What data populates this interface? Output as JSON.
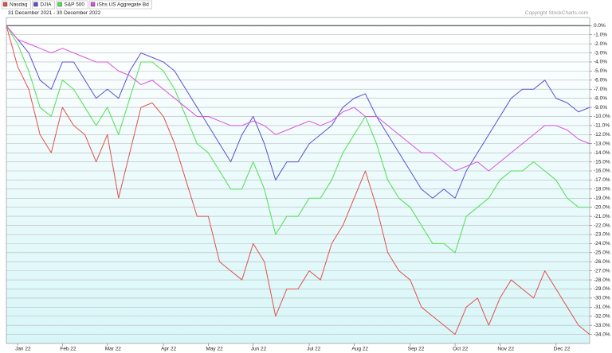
{
  "chart_data": {
    "type": "line",
    "subtitle": "31 December 2021 - 30 December 2022",
    "copyright": "Copyright StockCharts.com",
    "categories": [
      null,
      "Jan 22",
      null,
      null,
      null,
      "Feb 22",
      null,
      null,
      null,
      "Mar 22",
      null,
      null,
      null,
      null,
      "Apr 22",
      null,
      null,
      null,
      "May 22",
      null,
      null,
      null,
      "Jun 22",
      null,
      null,
      null,
      null,
      "Jul 22",
      null,
      null,
      null,
      "Aug 22",
      null,
      null,
      null,
      null,
      "Sep 22",
      null,
      null,
      null,
      "Oct 22",
      null,
      null,
      null,
      "Nov 22",
      null,
      null,
      null,
      null,
      "Dec 22",
      null,
      null,
      null
    ],
    "series": [
      {
        "name": "Nasdaq",
        "color": "#e0504c",
        "values": [
          0,
          -4.5,
          -7,
          -12,
          -14,
          -9,
          -11,
          -12,
          -15,
          -12,
          -19,
          -14,
          -9,
          -8.5,
          -10,
          -13,
          -17,
          -21,
          -21,
          -26,
          -27,
          -28,
          -24,
          -26,
          -32,
          -29,
          -29,
          -27,
          -28,
          -24,
          -22,
          -19,
          -16,
          -20,
          -25,
          -27,
          -28,
          -31,
          -32,
          -33,
          -34,
          -31,
          -30,
          -33,
          -30,
          -28,
          -29,
          -30,
          -27,
          -29,
          -31,
          -33,
          -34
        ]
      },
      {
        "name": "DJIA",
        "color": "#5a4fcf",
        "values": [
          0,
          -1.5,
          -3,
          -6,
          -7,
          -4,
          -4,
          -6,
          -8,
          -7,
          -8,
          -5,
          -3,
          -3.5,
          -4,
          -5,
          -7,
          -9,
          -11,
          -13,
          -15,
          -12,
          -10,
          -13,
          -17,
          -15,
          -15,
          -13,
          -12,
          -11,
          -9,
          -8,
          -7.5,
          -10,
          -12,
          -14,
          -16,
          -18,
          -19,
          -18,
          -19,
          -16,
          -14,
          -12,
          -10,
          -8,
          -7,
          -7,
          -6,
          -8,
          -8.5,
          -9.5,
          -9
        ]
      },
      {
        "name": "S&P 500",
        "color": "#4ee04e",
        "values": [
          0,
          -2,
          -5,
          -9,
          -10,
          -6,
          -7,
          -9,
          -11,
          -9,
          -12,
          -8,
          -4,
          -4,
          -5,
          -7,
          -10,
          -13,
          -14,
          -16,
          -18,
          -18,
          -15,
          -18,
          -23,
          -21,
          -21,
          -19,
          -19,
          -17,
          -14,
          -12,
          -10,
          -13,
          -17,
          -19,
          -20,
          -22,
          -24,
          -24,
          -25,
          -21,
          -20,
          -19,
          -17,
          -16,
          -16,
          -15,
          -16,
          -17,
          -19,
          -20,
          -20
        ]
      },
      {
        "name": "iShs US Aggregate Bd",
        "color": "#d850df",
        "values": [
          0,
          -1.5,
          -2,
          -2.5,
          -3,
          -2.5,
          -3,
          -3.5,
          -4,
          -4,
          -5,
          -5.5,
          -6.5,
          -6,
          -7,
          -8,
          -9,
          -10,
          -10,
          -10.5,
          -11,
          -11,
          -10.5,
          -11,
          -12,
          -11.5,
          -11,
          -10.5,
          -11,
          -10.5,
          -9.5,
          -9,
          -10,
          -10,
          -11,
          -12,
          -13,
          -14,
          -14,
          -15,
          -16,
          -15.5,
          -15,
          -16,
          -15,
          -14,
          -13,
          -12,
          -11,
          -11,
          -11.5,
          -12.5,
          -13
        ]
      }
    ],
    "ylim": [
      0.9,
      -35
    ],
    "yticks": [
      {
        "value": 0,
        "label": "0.0%"
      },
      {
        "value": -1,
        "label": "-1.0%"
      },
      {
        "value": -2,
        "label": "-2.0%"
      },
      {
        "value": -3,
        "label": "-3.0%"
      },
      {
        "value": -4,
        "label": "-4.0%"
      },
      {
        "value": -5,
        "label": "-5.0%"
      },
      {
        "value": -6,
        "label": "-6.0%"
      },
      {
        "value": -7,
        "label": "-7.0%"
      },
      {
        "value": -8,
        "label": "-8.0%"
      },
      {
        "value": -9,
        "label": "-9.0%"
      },
      {
        "value": -10,
        "label": "-10.0%"
      },
      {
        "value": -11,
        "label": "-11.0%"
      },
      {
        "value": -12,
        "label": "-12.0%"
      },
      {
        "value": -13,
        "label": "-13.0%"
      },
      {
        "value": -14,
        "label": "-14.0%"
      },
      {
        "value": -15,
        "label": "-15.0%"
      },
      {
        "value": -16,
        "label": "-16.0%"
      },
      {
        "value": -17,
        "label": "-17.0%"
      },
      {
        "value": -18,
        "label": "-18.0%"
      },
      {
        "value": -19,
        "label": "-19.0%"
      },
      {
        "value": -20,
        "label": "-20.0%"
      },
      {
        "value": -21,
        "label": "-21.0%"
      },
      {
        "value": -22,
        "label": "-22.0%"
      },
      {
        "value": -23,
        "label": "-23.0%"
      },
      {
        "value": -24,
        "label": "-24.0%"
      },
      {
        "value": -25,
        "label": "-25.0%"
      },
      {
        "value": -26,
        "label": "-26.0%"
      },
      {
        "value": -27,
        "label": "-27.0%"
      },
      {
        "value": -28,
        "label": "-28.0%"
      },
      {
        "value": -29,
        "label": "-29.0%"
      },
      {
        "value": -30,
        "label": "-30.0%"
      },
      {
        "value": -31,
        "label": "-31.0%"
      },
      {
        "value": -32,
        "label": "-32.0%"
      },
      {
        "value": -33,
        "label": "-33.0%"
      },
      {
        "value": -34,
        "label": "-34.0%"
      }
    ],
    "grid": true
  }
}
